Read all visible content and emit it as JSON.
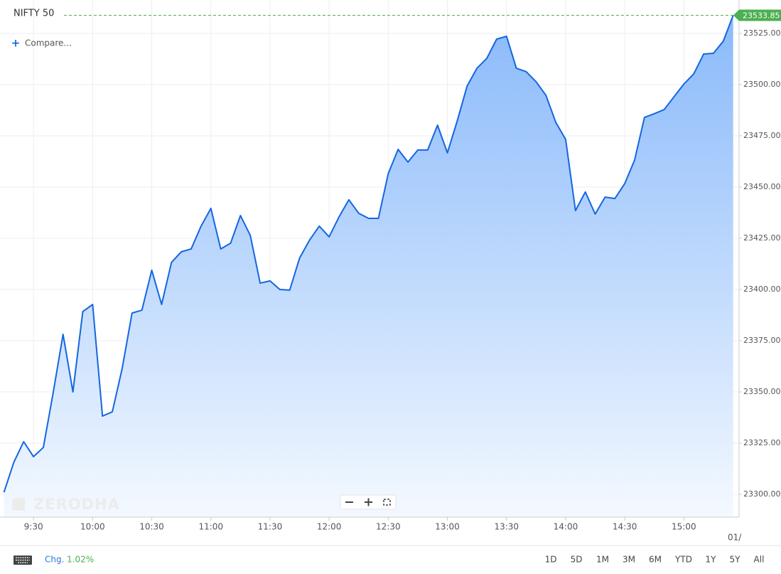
{
  "chart_data": {
    "type": "area",
    "title": "NIFTY 50",
    "compare_label": "Compare...",
    "watermark": "ZERODHA",
    "x": [
      555,
      560,
      565,
      570,
      575,
      580,
      585,
      590,
      595,
      600,
      605,
      610,
      615,
      620,
      625,
      630,
      635,
      640,
      645,
      650,
      655,
      660,
      665,
      670,
      675,
      680,
      685,
      690,
      695,
      700,
      705,
      710,
      715,
      720,
      725,
      730,
      735,
      740,
      745,
      750,
      755,
      760,
      765,
      770,
      775,
      780,
      785,
      790,
      795,
      800,
      805,
      810,
      815,
      820,
      825,
      830,
      835,
      840,
      845,
      850,
      855,
      860,
      865,
      870,
      875,
      880,
      885,
      890,
      895,
      900,
      905,
      910,
      915,
      920,
      925
    ],
    "values": [
      23301.0,
      23315.6,
      23325.7,
      23318.4,
      23322.9,
      23349.7,
      23378.1,
      23350.0,
      23389.2,
      23392.7,
      23338.2,
      23340.3,
      23361.5,
      23388.5,
      23389.9,
      23409.4,
      23392.7,
      23413.2,
      23418.4,
      23419.8,
      23430.9,
      23439.6,
      23419.8,
      23422.6,
      23436.1,
      23426.4,
      23403.1,
      23404.2,
      23400.0,
      23399.7,
      23415.3,
      23424.0,
      23430.9,
      23425.7,
      23435.4,
      23443.8,
      23437.2,
      23434.7,
      23434.7,
      23456.6,
      23468.4,
      23462.2,
      23468.1,
      23468.1,
      23480.2,
      23466.7,
      23482.3,
      23499.3,
      23508.0,
      23512.8,
      23522.2,
      23523.6,
      23508.0,
      23506.3,
      23501.4,
      23494.8,
      23481.6,
      23473.3,
      23438.5,
      23447.6,
      23436.8,
      23445.1,
      23444.4,
      23451.7,
      23463.2,
      23484.0,
      23485.8,
      23487.8,
      23494.1,
      23500.3,
      23505.2,
      23514.9,
      23515.3,
      23521.2,
      23533.85
    ],
    "color": "#1466e0",
    "area_color": "#84b6fa",
    "last_price": 23533.85,
    "last_price_color": "#4caf50",
    "xlim": [
      553,
      928
    ],
    "xticks": [
      {
        "value": 570,
        "label": "9:30"
      },
      {
        "value": 600,
        "label": "10:00"
      },
      {
        "value": 630,
        "label": "10:30"
      },
      {
        "value": 660,
        "label": "11:00"
      },
      {
        "value": 690,
        "label": "11:30"
      },
      {
        "value": 720,
        "label": "12:00"
      },
      {
        "value": 750,
        "label": "12:30"
      },
      {
        "value": 780,
        "label": "13:00"
      },
      {
        "value": 810,
        "label": "13:30"
      },
      {
        "value": 840,
        "label": "14:00"
      },
      {
        "value": 870,
        "label": "14:30"
      },
      {
        "value": 900,
        "label": "15:00"
      }
    ],
    "edge_date_label": "01/",
    "ylim": [
      23288.9,
      23541.3
    ],
    "yticks": [
      {
        "value": 23300,
        "label": "23300.00"
      },
      {
        "value": 23325,
        "label": "23325.00"
      },
      {
        "value": 23350,
        "label": "23350.00"
      },
      {
        "value": 23375,
        "label": "23375.00"
      },
      {
        "value": 23400,
        "label": "23400.00"
      },
      {
        "value": 23425,
        "label": "23425.00"
      },
      {
        "value": 23450,
        "label": "23450.00"
      },
      {
        "value": 23475,
        "label": "23475.00"
      },
      {
        "value": 23500,
        "label": "23500.00"
      },
      {
        "value": 23525,
        "label": "23525.00"
      }
    ],
    "grid": true,
    "change_label": "Chg.",
    "change_value": "1.02%",
    "ranges": [
      "1D",
      "5D",
      "1M",
      "3M",
      "6M",
      "YTD",
      "1Y",
      "5Y",
      "All"
    ]
  }
}
